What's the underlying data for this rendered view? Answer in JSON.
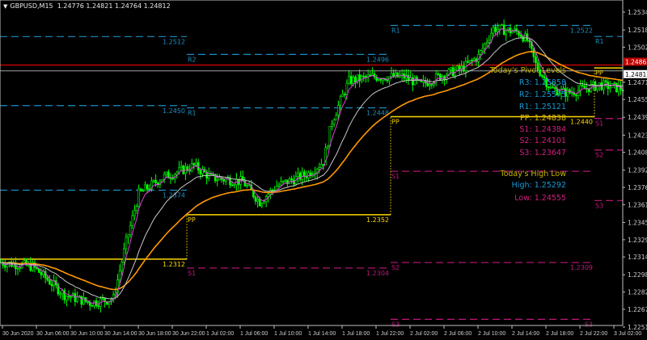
{
  "header": {
    "symbol": "GBPUSD,M15",
    "ohlc": "1.24776 1.24821 1.24764 1.24812",
    "menu_icon": "triangle-down-icon"
  },
  "colors": {
    "background": "#000000",
    "candles": "#00ff00",
    "ma_fast": "#e040e0",
    "ma_mid": "#c8c8c8",
    "ma_slow": "#ff9900",
    "resistance": "#1a8fc0",
    "pivot": "#ffd700",
    "support": "#c0187a",
    "ask_line": "#c00000",
    "bid_line": "#a0a0a0",
    "axis": "#c0c0c0"
  },
  "chart_data": {
    "type": "candlestick",
    "instrument": "GBPUSD",
    "timeframe": "M15",
    "ylim": [
      1.2251,
      1.2536
    ],
    "close_path": [
      [
        "30 Jun 00:00",
        1.23091
      ],
      [
        "30 Jun 03:45",
        1.23055
      ],
      [
        "30 Jun 07:30",
        1.228
      ],
      [
        "30 Jun 10:30",
        1.22728
      ],
      [
        "30 Jun 13:15",
        1.22764
      ],
      [
        "30 Jun 14:45",
        1.23272
      ],
      [
        "30 Jun 16:15",
        1.23707
      ],
      [
        "30 Jun 19:00",
        1.23852
      ],
      [
        "30 Jun 22:45",
        1.23961
      ],
      [
        "1 Jul 00:45",
        1.23852
      ],
      [
        "1 Jul 04:30",
        1.23816
      ],
      [
        "1 Jul 06:30",
        1.23635
      ],
      [
        "1 Jul 08:30",
        1.2378
      ],
      [
        "1 Jul 12:15",
        1.23889
      ],
      [
        "1 Jul 14:00",
        1.23998
      ],
      [
        "1 Jul 15:00",
        1.2436
      ],
      [
        "1 Jul 17:00",
        1.24723
      ],
      [
        "1 Jul 19:45",
        1.24759
      ],
      [
        "1 Jul 23:30",
        1.24759
      ],
      [
        "2 Jul 01:30",
        1.24687
      ],
      [
        "2 Jul 03:30",
        1.24759
      ],
      [
        "2 Jul 06:15",
        1.24832
      ],
      [
        "2 Jul 08:15",
        1.24941
      ],
      [
        "2 Jul 10:00",
        1.25195
      ],
      [
        "2 Jul 13:00",
        1.25159
      ],
      [
        "2 Jul 14:00",
        1.25086
      ],
      [
        "2 Jul 15:00",
        1.24868
      ],
      [
        "2 Jul 16:45",
        1.24651
      ],
      [
        "2 Jul 18:45",
        1.24614
      ],
      [
        "2 Jul 22:30",
        1.24687
      ],
      [
        "3 Jul 01:15",
        1.24651
      ]
    ],
    "price_ticks": [
      "1.25340",
      "1.25180",
      "1.25025",
      "1.24710",
      "1.24555",
      "1.24395",
      "1.24235",
      "1.24080",
      "1.23920",
      "1.23765",
      "1.23610",
      "1.23450",
      "1.23295",
      "1.23140",
      "1.22980",
      "1.22825",
      "1.22670",
      "1.22510"
    ],
    "price_tick_values": [
      1.2534,
      1.2518,
      1.25025,
      1.2471,
      1.24555,
      1.24395,
      1.24235,
      1.2408,
      1.2392,
      1.23765,
      1.2361,
      1.2345,
      1.23295,
      1.2314,
      1.2298,
      1.22825,
      1.2267,
      1.2251
    ],
    "ask_price": {
      "label": "1.24865",
      "value": 1.24865
    },
    "bid_price": {
      "label": "1.24812",
      "value": 1.24812
    },
    "time_ticks": [
      "30 Jun 2020",
      "30 Jun 06:00",
      "30 Jun 10:00",
      "30 Jun 14:00",
      "30 Jun 18:00",
      "30 Jun 22:00",
      "1 Jul 02:00",
      "1 Jul 06:00",
      "1 Jul 10:00",
      "1 Jul 14:00",
      "1 Jul 18:00",
      "1 Jul 22:00",
      "2 Jul 02:00",
      "2 Jul 06:00",
      "2 Jul 10:00",
      "2 Jul 14:00",
      "2 Jul 18:00",
      "2 Jul 22:00",
      "3 Jul 02:00"
    ],
    "levels": [
      {
        "name": "",
        "value_label": "1.2512",
        "price": 1.2512,
        "from": "30 Jun 00:00",
        "to": "30 Jun 22:00",
        "kind": "resistance"
      },
      {
        "name": "",
        "value_label": "1.2450",
        "price": 1.245,
        "from": "30 Jun 00:00",
        "to": "30 Jun 22:00",
        "kind": "resistance"
      },
      {
        "name": "",
        "value_label": "1.2374",
        "price": 1.2374,
        "from": "30 Jun 00:00",
        "to": "30 Jun 22:00",
        "kind": "resistance"
      },
      {
        "name": "",
        "value_label": "1.2312",
        "price": 1.2312,
        "from": "30 Jun 00:00",
        "to": "30 Jun 22:00",
        "kind": "pivot"
      },
      {
        "name": "R2",
        "value_label": "1.2496",
        "price": 1.2496,
        "from": "30 Jun 22:00",
        "to": "1 Jul 22:00",
        "kind": "resistance"
      },
      {
        "name": "R1",
        "value_label": "1.2448",
        "price": 1.2448,
        "from": "30 Jun 22:00",
        "to": "1 Jul 22:00",
        "kind": "resistance"
      },
      {
        "name": "PP",
        "value_label": "1.2352",
        "price": 1.2352,
        "from": "30 Jun 22:00",
        "to": "1 Jul 22:00",
        "kind": "pivot"
      },
      {
        "name": "S1",
        "value_label": "1.2304",
        "price": 1.2304,
        "from": "30 Jun 22:00",
        "to": "1 Jul 22:00",
        "kind": "support"
      },
      {
        "name": "R1",
        "value_label": "1.2522",
        "price": 1.2522,
        "from": "1 Jul 22:00",
        "to": "2 Jul 22:00",
        "kind": "resistance"
      },
      {
        "name": "PP",
        "value_label": "1.2440",
        "price": 1.244,
        "from": "1 Jul 22:00",
        "to": "2 Jul 22:00",
        "kind": "pivot"
      },
      {
        "name": "S1",
        "value_label": "",
        "price": 1.2391,
        "from": "1 Jul 22:00",
        "to": "2 Jul 22:00",
        "kind": "support"
      },
      {
        "name": "S2",
        "value_label": "1.2309",
        "price": 1.2309,
        "from": "1 Jul 22:00",
        "to": "2 Jul 22:00",
        "kind": "support"
      },
      {
        "name": "S3",
        "value_label": "S3",
        "price": 1.2258,
        "from": "1 Jul 22:00",
        "to": "2 Jul 22:00",
        "kind": "support"
      },
      {
        "name": "R1",
        "value_label": "",
        "price": 1.25121,
        "from": "2 Jul 22:00",
        "to": "3 Jul 02:00",
        "kind": "resistance"
      },
      {
        "name": "PP",
        "value_label": "",
        "price": 1.24838,
        "from": "2 Jul 22:00",
        "to": "3 Jul 02:00",
        "kind": "pivot"
      },
      {
        "name": "S1",
        "value_label": "",
        "price": 1.24384,
        "from": "2 Jul 22:00",
        "to": "3 Jul 02:00",
        "kind": "support"
      },
      {
        "name": "S2",
        "value_label": "",
        "price": 1.24101,
        "from": "2 Jul 22:00",
        "to": "3 Jul 02:00",
        "kind": "support"
      },
      {
        "name": "S3",
        "value_label": "",
        "price": 1.23647,
        "from": "2 Jul 22:00",
        "to": "3 Jul 02:00",
        "kind": "support"
      }
    ]
  },
  "pivot_panel": {
    "title": "Today's Pivot Levels",
    "r3": "R3: 1.25858",
    "r2": "R2: 1.25575",
    "r1": "R1: 1.25121",
    "pp": "PP: 1.24838",
    "s1": "S1: 1.24384",
    "s2": "S2: 1.24101",
    "s3": "S3: 1.23647"
  },
  "high_low_panel": {
    "title": "Today's High Low",
    "high": "High: 1.25292",
    "low": "Low: 1.24555"
  }
}
